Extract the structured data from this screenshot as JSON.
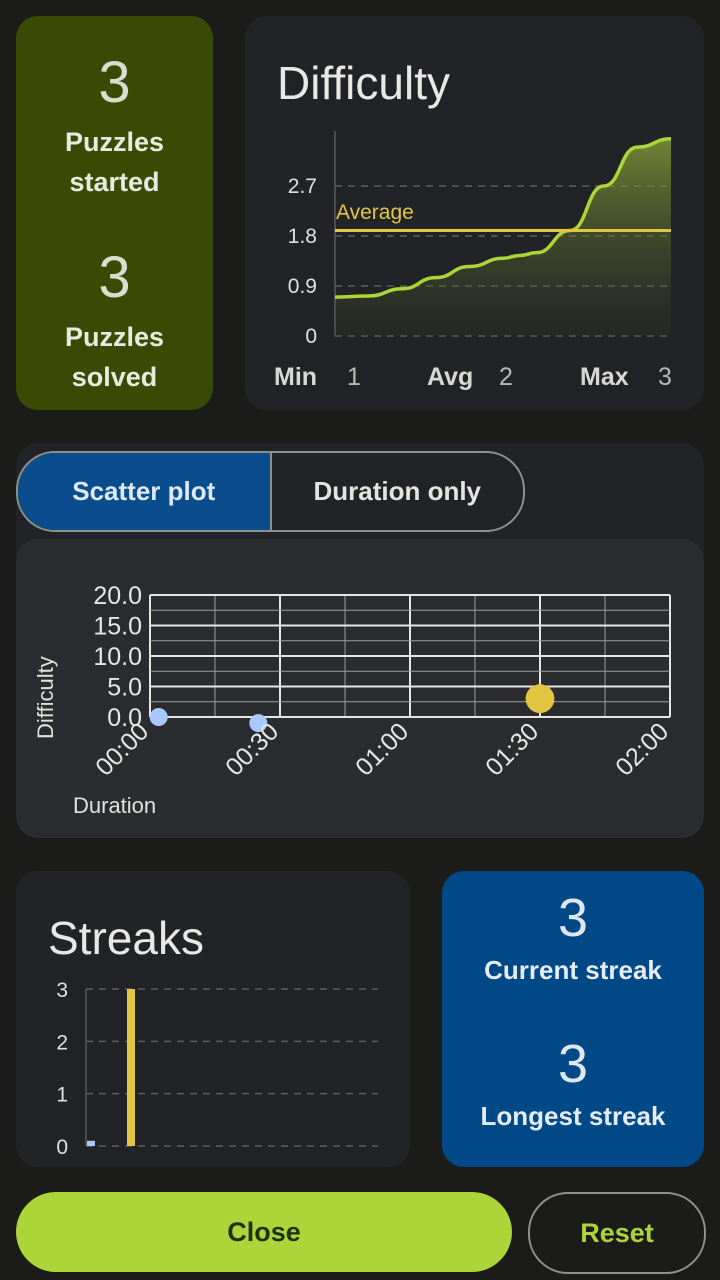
{
  "summary": {
    "started_value": "3",
    "started_label_1": "Puzzles",
    "started_label_2": "started",
    "solved_value": "3",
    "solved_label_1": "Puzzles",
    "solved_label_2": "solved"
  },
  "difficulty": {
    "title": "Difficulty",
    "average_label": "Average",
    "min_label": "Min",
    "min_value": "1",
    "avg_label": "Avg",
    "avg_value": "2",
    "max_label": "Max",
    "max_value": "3"
  },
  "toggle": {
    "scatter_label": "Scatter plot",
    "duration_label": "Duration only"
  },
  "streaks": {
    "title": "Streaks",
    "current_value": "3",
    "current_label": "Current streak",
    "longest_value": "3",
    "longest_label": "Longest streak"
  },
  "buttons": {
    "close_label": "Close",
    "reset_label": "Reset"
  },
  "colors": {
    "accent_green": "#abd538",
    "average_yellow": "#e2c642",
    "scatter_blue": "#a8c8ff",
    "primary_blue": "#004886"
  },
  "chart_data": [
    {
      "type": "area",
      "name": "difficulty-distribution",
      "y_ticks": [
        "0",
        "0.9",
        "1.8",
        "2.7"
      ],
      "ylim": [
        0,
        3.6
      ],
      "x": [
        0,
        0.1,
        0.2,
        0.3,
        0.4,
        0.5,
        0.55,
        0.6,
        0.7,
        0.8,
        0.9,
        1.0
      ],
      "values": [
        0.7,
        0.72,
        0.85,
        1.05,
        1.25,
        1.4,
        1.45,
        1.5,
        1.9,
        2.7,
        3.4,
        3.55
      ],
      "average": 1.9,
      "grid": true
    },
    {
      "type": "scatter",
      "name": "difficulty-vs-duration",
      "xlabel": "Duration",
      "ylabel": "Difficulty",
      "x_ticks": [
        "00:00",
        "00:30",
        "01:00",
        "01:30",
        "02:00"
      ],
      "y_ticks": [
        "0.0",
        "5.0",
        "10.0",
        "15.0",
        "20.0"
      ],
      "xlim": [
        0,
        120
      ],
      "ylim": [
        0,
        20
      ],
      "points": [
        {
          "x": 2,
          "y": 0,
          "color": "#a8c8ff",
          "size": 1
        },
        {
          "x": 25,
          "y": -1,
          "color": "#a8c8ff",
          "size": 1
        },
        {
          "x": 90,
          "y": 3,
          "color": "#e2c642",
          "size": 1.6
        }
      ],
      "grid": true
    },
    {
      "type": "bar",
      "name": "streaks",
      "y_ticks": [
        "0",
        "1",
        "2",
        "3"
      ],
      "ylim": [
        0,
        3
      ],
      "bars": [
        {
          "value": 0.1,
          "color": "#a8c8ff"
        },
        {
          "value": 3,
          "color": "#e2c642"
        }
      ],
      "grid": true
    }
  ]
}
